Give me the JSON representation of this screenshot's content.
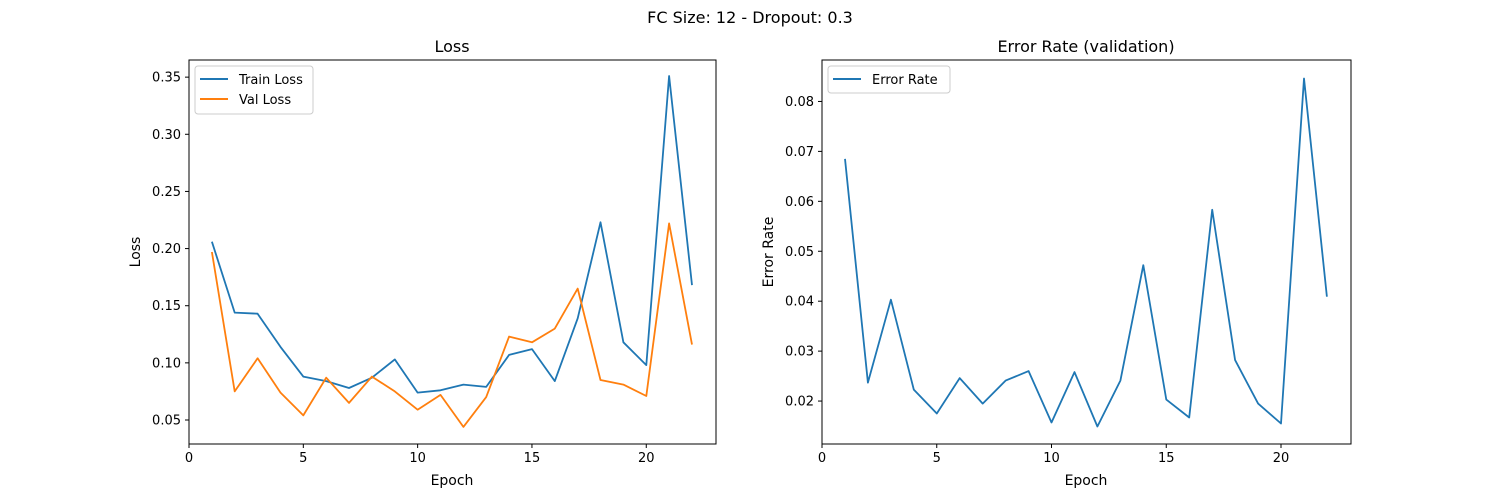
{
  "figure": {
    "suptitle": "FC Size: 12 - Dropout: 0.3"
  },
  "chart_data": [
    {
      "type": "line",
      "title": "Loss",
      "xlabel": "Epoch",
      "ylabel": "Loss",
      "xlim": [
        0,
        23.05
      ],
      "ylim": [
        0.029,
        0.365
      ],
      "xticks": [
        0,
        5,
        10,
        15,
        20
      ],
      "yticks": [
        0.05,
        0.1,
        0.15,
        0.2,
        0.25,
        0.3,
        0.35
      ],
      "ytick_labels": [
        "0.05",
        "0.10",
        "0.15",
        "0.20",
        "0.25",
        "0.30",
        "0.35"
      ],
      "grid": false,
      "legend": "upper-left",
      "x": [
        1,
        2,
        3,
        4,
        5,
        6,
        7,
        8,
        9,
        10,
        11,
        12,
        13,
        14,
        15,
        16,
        17,
        18,
        19,
        20,
        21,
        22
      ],
      "series": [
        {
          "name": "Train Loss",
          "color": "#1f77b4",
          "values": [
            0.206,
            0.144,
            0.143,
            0.114,
            0.088,
            0.084,
            0.078,
            0.087,
            0.103,
            0.074,
            0.076,
            0.081,
            0.079,
            0.107,
            0.112,
            0.084,
            0.139,
            0.223,
            0.118,
            0.098,
            0.351,
            0.168
          ]
        },
        {
          "name": "Val Loss",
          "color": "#ff7f0e",
          "values": [
            0.197,
            0.075,
            0.104,
            0.074,
            0.054,
            0.087,
            0.065,
            0.088,
            0.075,
            0.059,
            0.072,
            0.044,
            0.07,
            0.123,
            0.118,
            0.13,
            0.165,
            0.085,
            0.081,
            0.071,
            0.222,
            0.116
          ]
        }
      ]
    },
    {
      "type": "line",
      "title": "Error Rate (validation)",
      "xlabel": "Epoch",
      "ylabel": "Error Rate",
      "xlim": [
        0,
        23.05
      ],
      "ylim": [
        0.0114,
        0.0883
      ],
      "xticks": [
        0,
        5,
        10,
        15,
        20
      ],
      "yticks": [
        0.02,
        0.03,
        0.04,
        0.05,
        0.06,
        0.07,
        0.08
      ],
      "ytick_labels": [
        "0.02",
        "0.03",
        "0.04",
        "0.05",
        "0.06",
        "0.07",
        "0.08"
      ],
      "grid": false,
      "legend": "upper-left",
      "x": [
        1,
        2,
        3,
        4,
        5,
        6,
        7,
        8,
        9,
        10,
        11,
        12,
        13,
        14,
        15,
        16,
        17,
        18,
        19,
        20,
        21,
        22
      ],
      "series": [
        {
          "name": "Error Rate",
          "color": "#1f77b4",
          "values": [
            0.0685,
            0.0237,
            0.0403,
            0.0223,
            0.0175,
            0.0246,
            0.0195,
            0.0241,
            0.026,
            0.0157,
            0.0258,
            0.0149,
            0.0241,
            0.0472,
            0.0203,
            0.0167,
            0.0583,
            0.0282,
            0.0195,
            0.0155,
            0.0846,
            0.0409
          ]
        }
      ]
    }
  ]
}
